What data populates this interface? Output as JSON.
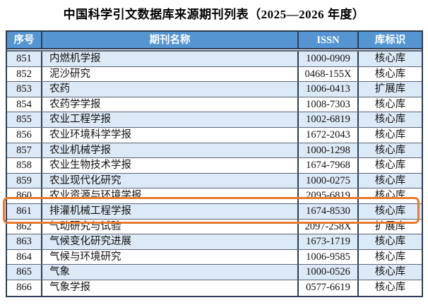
{
  "title": "中国科学引文数据库来源期刊列表（2025—2026 年度）",
  "table": {
    "columns": [
      "序号",
      "期刊名称",
      "ISSN",
      "库标识"
    ],
    "rows": [
      {
        "no": "851",
        "name": "内燃机学报",
        "issn": "1000-0909",
        "tag": "核心库"
      },
      {
        "no": "852",
        "name": "泥沙研究",
        "issn": "0468-155X",
        "tag": "核心库"
      },
      {
        "no": "853",
        "name": "农药",
        "issn": "1006-0413",
        "tag": "扩展库"
      },
      {
        "no": "854",
        "name": "农药学学报",
        "issn": "1008-7303",
        "tag": "核心库"
      },
      {
        "no": "855",
        "name": "农业工程学报",
        "issn": "1002-6819",
        "tag": "核心库"
      },
      {
        "no": "856",
        "name": "农业环境科学学报",
        "issn": "1672-2043",
        "tag": "核心库"
      },
      {
        "no": "857",
        "name": "农业机械学报",
        "issn": "1000-1298",
        "tag": "核心库"
      },
      {
        "no": "858",
        "name": "农业生物技术学报",
        "issn": "1674-7968",
        "tag": "核心库"
      },
      {
        "no": "859",
        "name": "农业现代化研究",
        "issn": "1000-0275",
        "tag": "核心库"
      },
      {
        "no": "860",
        "name": "农业资源与环境学报",
        "issn": "2095-6819",
        "tag": "核心库"
      },
      {
        "no": "861",
        "name": "排灌机械工程学报",
        "issn": "1674-8530",
        "tag": "核心库"
      },
      {
        "no": "862",
        "name": "气动研究与试验",
        "issn": "2097-258X",
        "tag": "扩展库"
      },
      {
        "no": "863",
        "name": "气候变化研究进展",
        "issn": "1673-1719",
        "tag": "核心库"
      },
      {
        "no": "864",
        "name": "气候与环境研究",
        "issn": "1006-9585",
        "tag": "核心库"
      },
      {
        "no": "865",
        "name": "气象",
        "issn": "1000-0526",
        "tag": "核心库"
      },
      {
        "no": "866",
        "name": "气象学报",
        "issn": "0577-6619",
        "tag": "核心库"
      }
    ],
    "highlight": {
      "row_no": "861"
    }
  },
  "colors": {
    "header_bg": "#5596d2",
    "row_alt_bg": "#dce9f6",
    "border_dark": "#2e3c55",
    "separator_gray": "#5a6578",
    "highlight_orange": "#e8792e"
  }
}
